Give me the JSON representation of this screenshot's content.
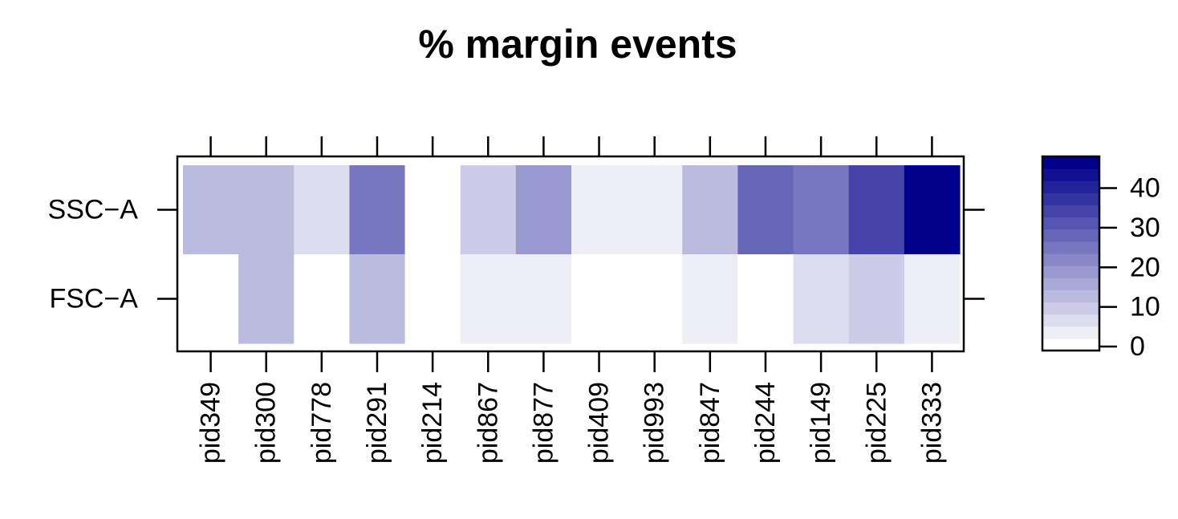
{
  "chart_data": {
    "type": "heatmap",
    "title": "% margin events",
    "xlabel": "",
    "ylabel": "",
    "x_categories": [
      "pid349",
      "pid300",
      "pid778",
      "pid291",
      "pid214",
      "pid867",
      "pid877",
      "pid409",
      "pid993",
      "pid847",
      "pid244",
      "pid149",
      "pid225",
      "pid333"
    ],
    "y_categories": [
      "SSC−A",
      "FSC−A"
    ],
    "values": [
      [
        14,
        14,
        8,
        25,
        2,
        11,
        20,
        5,
        5,
        14,
        29,
        26,
        33,
        48
      ],
      [
        2,
        14,
        0,
        14,
        2,
        5,
        5,
        2,
        2,
        5,
        2,
        8,
        11,
        5
      ]
    ],
    "colorbar": {
      "ticks": [
        0,
        10,
        20,
        30,
        40
      ],
      "tick_labels": [
        "0",
        "10",
        "20",
        "30",
        "40"
      ],
      "range": [
        -1,
        48
      ],
      "levels": 16,
      "low_color": "#FFFFFF",
      "high_color": "#00008B"
    },
    "grid": false,
    "legend": "colorbar-right"
  }
}
